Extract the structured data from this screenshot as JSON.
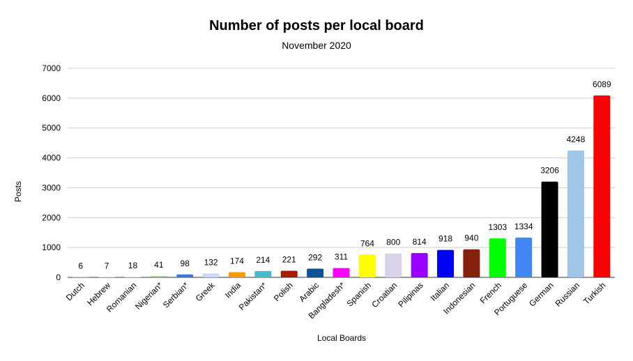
{
  "chart_data": {
    "type": "bar",
    "title": "Number of posts per local board",
    "subtitle": "November 2020",
    "xlabel": "Local Boards",
    "ylabel": "Posts",
    "ylim": [
      0,
      7000
    ],
    "yticks": [
      0,
      1000,
      2000,
      3000,
      4000,
      5000,
      6000,
      7000
    ],
    "grid": true,
    "categories": [
      "Dutch",
      "Hebrew",
      "Romanian",
      "Nigerian*",
      "Serbian*",
      "Greek",
      "India",
      "Pakistan*",
      "Polish",
      "Arabic",
      "Bangladesh*",
      "Spanish",
      "Croatian",
      "Pilipinas",
      "Italian",
      "Indonesian",
      "French",
      "Portuguese",
      "German",
      "Russian",
      "Turkish"
    ],
    "values": [
      6,
      7,
      18,
      41,
      98,
      132,
      174,
      214,
      221,
      292,
      311,
      764,
      800,
      814,
      918,
      940,
      1303,
      1334,
      3206,
      4248,
      6089
    ],
    "colors": [
      "#f3a6a6",
      "#f6e3b8",
      "#fde0c8",
      "#93c47d",
      "#3c78d8",
      "#c9daf8",
      "#ff9900",
      "#46bdc6",
      "#a61c00",
      "#0b5394",
      "#ff00ff",
      "#ffff00",
      "#d9d2e9",
      "#9900ff",
      "#0000ff",
      "#85200c",
      "#00ff00",
      "#4285f4",
      "#000000",
      "#9fc5e8",
      "#ff0000"
    ]
  }
}
